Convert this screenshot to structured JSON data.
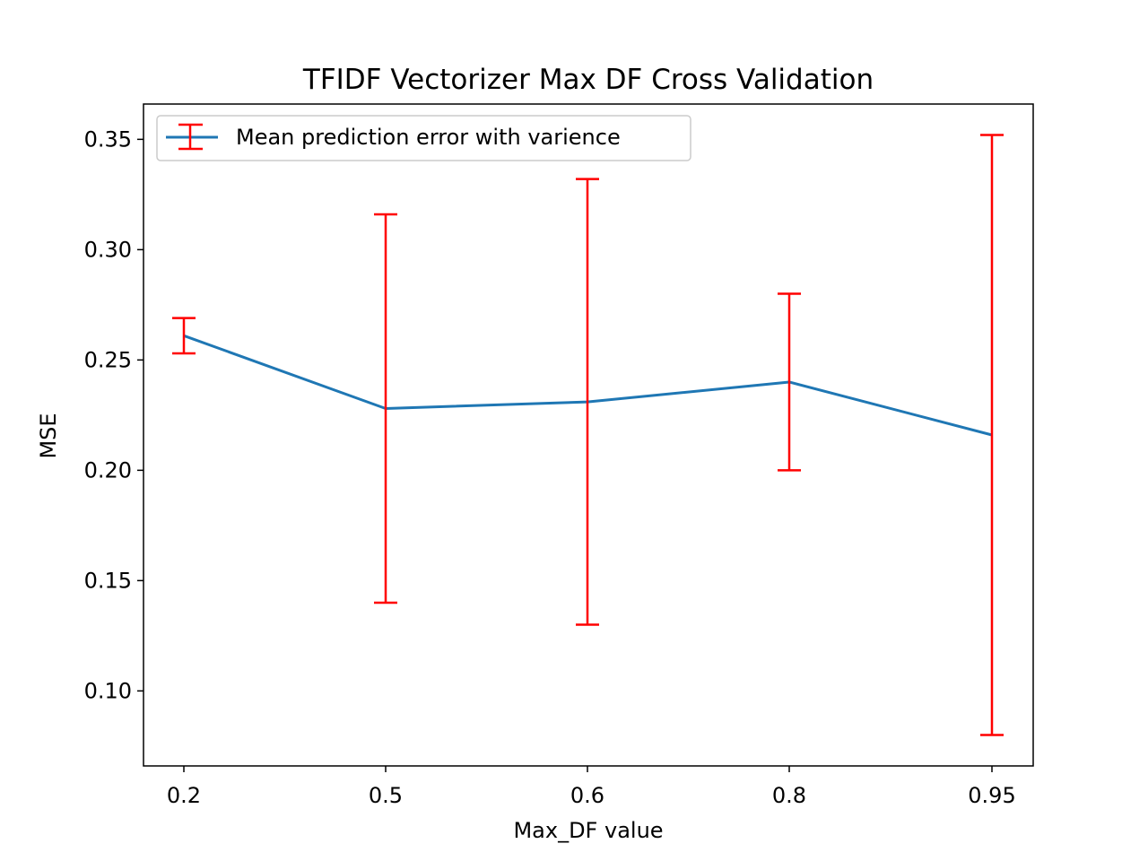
{
  "chart_data": {
    "type": "line",
    "title": "TFIDF Vectorizer Max DF Cross Validation",
    "xlabel": "Max_DF value",
    "ylabel": "MSE",
    "categories": [
      "0.2",
      "0.5",
      "0.6",
      "0.8",
      "0.95"
    ],
    "series": [
      {
        "name": "Mean prediction error with varience",
        "values": [
          0.261,
          0.228,
          0.231,
          0.24,
          0.216
        ],
        "error": [
          0.008,
          0.088,
          0.101,
          0.04,
          0.136
        ],
        "line_color": "#1f77b4",
        "error_color": "#ff0000"
      }
    ],
    "ylim": [
      0.066,
      0.366
    ],
    "yticks": [
      "0.10",
      "0.15",
      "0.20",
      "0.25",
      "0.30",
      "0.35"
    ],
    "grid": false,
    "legend_position": "upper left"
  }
}
